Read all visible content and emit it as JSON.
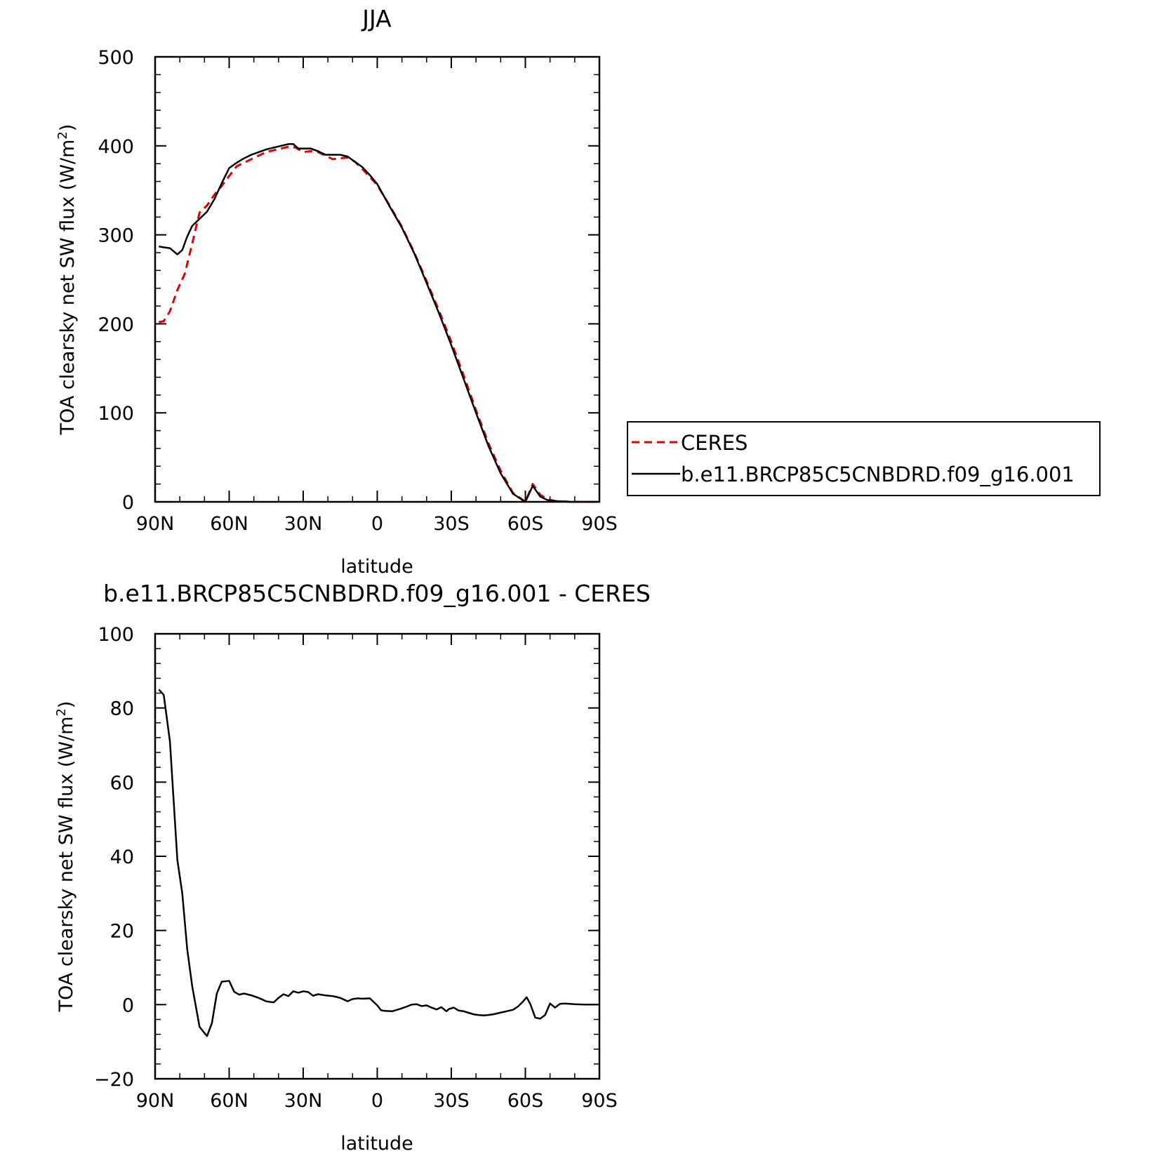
{
  "chart_data": [
    {
      "type": "line",
      "title": "JJA",
      "xlabel": "latitude",
      "ylabel": "TOA clearsky net SW flux (W/m",
      "ylabel_sup": "2",
      "ylabel_tail": ")",
      "xlim": [
        90,
        -90
      ],
      "ylim": [
        0,
        500
      ],
      "x_ticks": [
        90,
        60,
        30,
        0,
        -30,
        -60,
        -90
      ],
      "x_tick_labels": [
        "90N",
        "60N",
        "30N",
        "0",
        "30S",
        "60S",
        "90S"
      ],
      "y_ticks": [
        0,
        100,
        200,
        300,
        400,
        500
      ],
      "y_tick_labels": [
        "0",
        "100",
        "200",
        "300",
        "400",
        "500"
      ],
      "legend_position": "right",
      "series": [
        {
          "name": "CERES",
          "color": "#e00000",
          "dash": "dashed",
          "x": [
            88.5,
            86.5,
            84,
            81,
            78,
            75,
            72,
            69,
            66,
            63,
            60,
            57,
            54,
            51,
            48,
            45,
            42,
            39,
            36,
            33,
            30,
            27,
            24,
            21,
            18,
            15,
            12,
            9,
            6,
            3,
            0,
            -5,
            -10,
            -15,
            -20,
            -25,
            -30,
            -35,
            -40,
            -45,
            -50,
            -55,
            -60,
            -63,
            -66,
            -69,
            -72,
            -75,
            -78,
            -81,
            -84,
            -87,
            -89.5
          ],
          "values": [
            202,
            203,
            214,
            238,
            256,
            290,
            325,
            333,
            345,
            355,
            366,
            377,
            381,
            385,
            389,
            393,
            395,
            397,
            399,
            398,
            393,
            394,
            393,
            389,
            385,
            386,
            387,
            382,
            374,
            365,
            356,
            333,
            309,
            280,
            248,
            215,
            180,
            142,
            103,
            66,
            35,
            10,
            0,
            20,
            8,
            3,
            1,
            0.5,
            0.2,
            0,
            0,
            0,
            0
          ]
        },
        {
          "name": "b.e11.BRCP85C5CNBDRD.f09_g16.001",
          "color": "#000000",
          "dash": "solid",
          "x": [
            88.5,
            86.5,
            84,
            81,
            79,
            77,
            75,
            72,
            69,
            66,
            63,
            60,
            57,
            54,
            51,
            48,
            45,
            42,
            39,
            36,
            34,
            32,
            30,
            27,
            24,
            21,
            18,
            15,
            12,
            9,
            6,
            3,
            0,
            -5,
            -10,
            -15,
            -20,
            -25,
            -30,
            -35,
            -40,
            -45,
            -50,
            -55,
            -60,
            -63,
            -66,
            -69,
            -72,
            -75,
            -78,
            -81,
            -84,
            -87,
            -89.5
          ],
          "values": [
            287,
            286,
            285,
            278,
            283,
            298,
            310,
            318,
            326,
            340,
            358,
            375,
            381,
            386,
            390,
            393,
            396,
            398,
            400,
            402,
            402,
            397,
            397,
            397,
            394,
            390,
            390,
            390,
            388,
            382,
            376,
            367,
            357,
            332,
            308,
            279,
            246,
            212,
            176,
            138,
            100,
            63,
            32,
            9,
            0,
            18,
            6,
            2,
            1,
            0.4,
            0,
            0,
            0,
            0,
            0
          ]
        }
      ]
    },
    {
      "type": "line",
      "title": "b.e11.BRCP85C5CNBDRD.f09_g16.001 - CERES",
      "xlabel": "latitude",
      "ylabel": "TOA clearsky net SW flux (W/m",
      "ylabel_sup": "2",
      "ylabel_tail": ")",
      "xlim": [
        90,
        -90
      ],
      "ylim": [
        -20,
        100
      ],
      "x_ticks": [
        90,
        60,
        30,
        0,
        -30,
        -60,
        -90
      ],
      "x_tick_labels": [
        "90N",
        "60N",
        "30N",
        "0",
        "30S",
        "60S",
        "90S"
      ],
      "y_ticks": [
        -20,
        0,
        20,
        40,
        60,
        80,
        100
      ],
      "y_tick_labels": [
        "−20",
        "0",
        "20",
        "40",
        "60",
        "80",
        "100"
      ],
      "series": [
        {
          "color": "#000000",
          "dash": "solid",
          "x": [
            88.5,
            86.5,
            84,
            81,
            79,
            77,
            75,
            72,
            69,
            67,
            65,
            63,
            60,
            58,
            56,
            54,
            51,
            48,
            45,
            42,
            40,
            38,
            36,
            34,
            32,
            30,
            28,
            26,
            24,
            21,
            18,
            15,
            12,
            10,
            8,
            6,
            3,
            0,
            -1.5,
            -3,
            -6,
            -9,
            -12,
            -14,
            -16,
            -18,
            -20,
            -22,
            -24,
            -26,
            -28,
            -29,
            -31,
            -33,
            -35,
            -37,
            -39,
            -41,
            -43,
            -45,
            -47,
            -49,
            -51,
            -53,
            -55,
            -57,
            -59,
            -60.5,
            -62,
            -64,
            -66,
            -68,
            -70,
            -72,
            -74,
            -76,
            -78,
            -80,
            -84,
            -89.5
          ],
          "values": [
            85,
            83.5,
            71,
            39,
            30,
            15,
            5,
            -6,
            -8.5,
            -5,
            3,
            6.2,
            6.4,
            3.5,
            2.7,
            3,
            2.5,
            1.8,
            0.9,
            0.6,
            1.8,
            2.8,
            2.3,
            3.6,
            3.2,
            3.6,
            3.4,
            2.4,
            2.8,
            2.5,
            2.3,
            1.8,
            0.9,
            1.5,
            1.7,
            1.6,
            1.7,
            -0.2,
            -1.5,
            -1.7,
            -1.8,
            -1.2,
            -0.5,
            0,
            0.1,
            -0.4,
            -0.2,
            -0.8,
            -1.3,
            -0.7,
            -1.8,
            -1.2,
            -0.8,
            -1.6,
            -1.8,
            -2.2,
            -2.6,
            -2.8,
            -2.9,
            -2.8,
            -2.6,
            -2.3,
            -2.0,
            -1.7,
            -1.4,
            -0.5,
            0.8,
            2.0,
            0.2,
            -3.5,
            -3.8,
            -2.8,
            0.3,
            -0.8,
            0.2,
            0.3,
            0.2,
            0.1,
            0,
            0
          ]
        }
      ]
    }
  ]
}
